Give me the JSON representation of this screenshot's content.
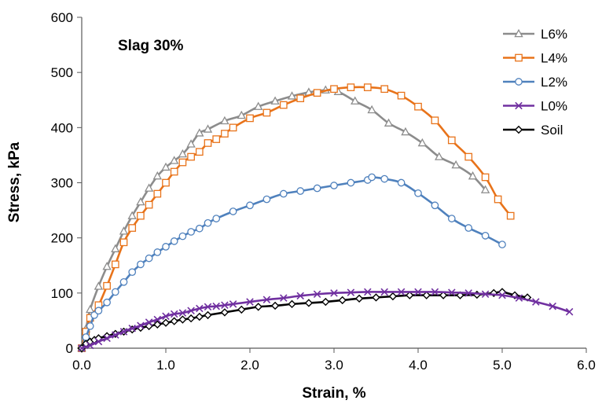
{
  "chart_data": {
    "type": "line",
    "annotation": "Slag 30%",
    "xlabel": "Strain, %",
    "ylabel": "Stress, kPa",
    "xlim": [
      0,
      6
    ],
    "ylim": [
      0,
      600
    ],
    "xticks": [
      "0.0",
      "1.0",
      "2.0",
      "3.0",
      "4.0",
      "5.0",
      "6.0"
    ],
    "yticks": [
      "0",
      "100",
      "200",
      "300",
      "400",
      "500",
      "600"
    ],
    "legend_position": "top-right",
    "series": [
      {
        "name": "L6%",
        "color": "#8c8c8c",
        "marker": "triangle",
        "points": [
          [
            0,
            0
          ],
          [
            0.05,
            35
          ],
          [
            0.1,
            70
          ],
          [
            0.2,
            112
          ],
          [
            0.3,
            148
          ],
          [
            0.4,
            180
          ],
          [
            0.5,
            212
          ],
          [
            0.6,
            240
          ],
          [
            0.7,
            265
          ],
          [
            0.8,
            290
          ],
          [
            0.9,
            312
          ],
          [
            1.0,
            328
          ],
          [
            1.1,
            340
          ],
          [
            1.2,
            352
          ],
          [
            1.3,
            370
          ],
          [
            1.4,
            390
          ],
          [
            1.5,
            397
          ],
          [
            1.7,
            412
          ],
          [
            1.9,
            422
          ],
          [
            2.1,
            438
          ],
          [
            2.3,
            448
          ],
          [
            2.5,
            457
          ],
          [
            2.7,
            464
          ],
          [
            2.9,
            468
          ],
          [
            3.05,
            465
          ],
          [
            3.25,
            448
          ],
          [
            3.45,
            432
          ],
          [
            3.65,
            408
          ],
          [
            3.85,
            392
          ],
          [
            4.05,
            372
          ],
          [
            4.25,
            347
          ],
          [
            4.45,
            332
          ],
          [
            4.65,
            312
          ],
          [
            4.8,
            287
          ]
        ]
      },
      {
        "name": "L4%",
        "color": "#e8731a",
        "marker": "square",
        "points": [
          [
            0,
            0
          ],
          [
            0.05,
            30
          ],
          [
            0.1,
            55
          ],
          [
            0.2,
            78
          ],
          [
            0.3,
            113
          ],
          [
            0.4,
            152
          ],
          [
            0.5,
            192
          ],
          [
            0.6,
            218
          ],
          [
            0.7,
            240
          ],
          [
            0.8,
            260
          ],
          [
            0.9,
            280
          ],
          [
            1.0,
            300
          ],
          [
            1.1,
            320
          ],
          [
            1.2,
            337
          ],
          [
            1.3,
            347
          ],
          [
            1.4,
            356
          ],
          [
            1.5,
            372
          ],
          [
            1.6,
            379
          ],
          [
            1.7,
            389
          ],
          [
            1.8,
            400
          ],
          [
            2.0,
            417
          ],
          [
            2.2,
            427
          ],
          [
            2.4,
            441
          ],
          [
            2.6,
            453
          ],
          [
            2.8,
            463
          ],
          [
            3.0,
            470
          ],
          [
            3.2,
            473
          ],
          [
            3.4,
            473
          ],
          [
            3.6,
            470
          ],
          [
            3.8,
            458
          ],
          [
            4.0,
            438
          ],
          [
            4.2,
            413
          ],
          [
            4.4,
            377
          ],
          [
            4.6,
            347
          ],
          [
            4.8,
            310
          ],
          [
            4.95,
            270
          ],
          [
            5.1,
            240
          ]
        ]
      },
      {
        "name": "L2%",
        "color": "#4f81bd",
        "marker": "circle",
        "points": [
          [
            0,
            0
          ],
          [
            0.05,
            20
          ],
          [
            0.1,
            40
          ],
          [
            0.15,
            60
          ],
          [
            0.2,
            68
          ],
          [
            0.3,
            83
          ],
          [
            0.4,
            102
          ],
          [
            0.5,
            120
          ],
          [
            0.6,
            138
          ],
          [
            0.7,
            152
          ],
          [
            0.8,
            163
          ],
          [
            0.9,
            174
          ],
          [
            1.0,
            184
          ],
          [
            1.1,
            194
          ],
          [
            1.2,
            203
          ],
          [
            1.3,
            211
          ],
          [
            1.4,
            217
          ],
          [
            1.5,
            227
          ],
          [
            1.6,
            235
          ],
          [
            1.8,
            248
          ],
          [
            2.0,
            259
          ],
          [
            2.2,
            270
          ],
          [
            2.4,
            280
          ],
          [
            2.6,
            285
          ],
          [
            2.8,
            290
          ],
          [
            3.0,
            295
          ],
          [
            3.2,
            300
          ],
          [
            3.4,
            305
          ],
          [
            3.45,
            310
          ],
          [
            3.6,
            307
          ],
          [
            3.8,
            300
          ],
          [
            4.0,
            281
          ],
          [
            4.2,
            259
          ],
          [
            4.4,
            235
          ],
          [
            4.6,
            218
          ],
          [
            4.8,
            204
          ],
          [
            5.0,
            188
          ]
        ]
      },
      {
        "name": "L0%",
        "color": "#7030a0",
        "marker": "x",
        "points": [
          [
            0,
            0
          ],
          [
            0.1,
            5
          ],
          [
            0.2,
            12
          ],
          [
            0.3,
            18
          ],
          [
            0.4,
            24
          ],
          [
            0.5,
            30
          ],
          [
            0.6,
            36
          ],
          [
            0.7,
            41
          ],
          [
            0.8,
            47
          ],
          [
            0.9,
            52
          ],
          [
            1.0,
            58
          ],
          [
            1.1,
            62
          ],
          [
            1.2,
            64
          ],
          [
            1.3,
            68
          ],
          [
            1.4,
            72
          ],
          [
            1.5,
            75
          ],
          [
            1.6,
            76
          ],
          [
            1.7,
            78
          ],
          [
            1.8,
            80
          ],
          [
            2.0,
            84
          ],
          [
            2.2,
            88
          ],
          [
            2.4,
            91
          ],
          [
            2.6,
            95
          ],
          [
            2.8,
            98
          ],
          [
            3.0,
            100
          ],
          [
            3.2,
            101
          ],
          [
            3.4,
            102
          ],
          [
            3.6,
            102
          ],
          [
            3.8,
            102
          ],
          [
            4.0,
            102
          ],
          [
            4.2,
            102
          ],
          [
            4.4,
            101
          ],
          [
            4.6,
            100
          ],
          [
            4.8,
            98
          ],
          [
            5.0,
            96
          ],
          [
            5.2,
            91
          ],
          [
            5.4,
            84
          ],
          [
            5.6,
            76
          ],
          [
            5.8,
            66
          ]
        ]
      },
      {
        "name": "Soil",
        "color": "#000000",
        "marker": "diamond",
        "points": [
          [
            0,
            0
          ],
          [
            0.05,
            8
          ],
          [
            0.1,
            12
          ],
          [
            0.15,
            15
          ],
          [
            0.2,
            18
          ],
          [
            0.3,
            22
          ],
          [
            0.4,
            26
          ],
          [
            0.5,
            30
          ],
          [
            0.6,
            34
          ],
          [
            0.7,
            37
          ],
          [
            0.8,
            40
          ],
          [
            0.9,
            43
          ],
          [
            1.0,
            46
          ],
          [
            1.1,
            49
          ],
          [
            1.2,
            52
          ],
          [
            1.3,
            54
          ],
          [
            1.4,
            57
          ],
          [
            1.5,
            60
          ],
          [
            1.7,
            65
          ],
          [
            1.9,
            70
          ],
          [
            2.1,
            75
          ],
          [
            2.3,
            77
          ],
          [
            2.5,
            80
          ],
          [
            2.7,
            82
          ],
          [
            2.9,
            84
          ],
          [
            3.1,
            87
          ],
          [
            3.3,
            90
          ],
          [
            3.5,
            92
          ],
          [
            3.7,
            94
          ],
          [
            3.9,
            96
          ],
          [
            4.1,
            96
          ],
          [
            4.3,
            96
          ],
          [
            4.5,
            96
          ],
          [
            4.7,
            97
          ],
          [
            4.9,
            100
          ],
          [
            5.0,
            102
          ],
          [
            5.15,
            96
          ],
          [
            5.3,
            92
          ]
        ]
      }
    ]
  }
}
